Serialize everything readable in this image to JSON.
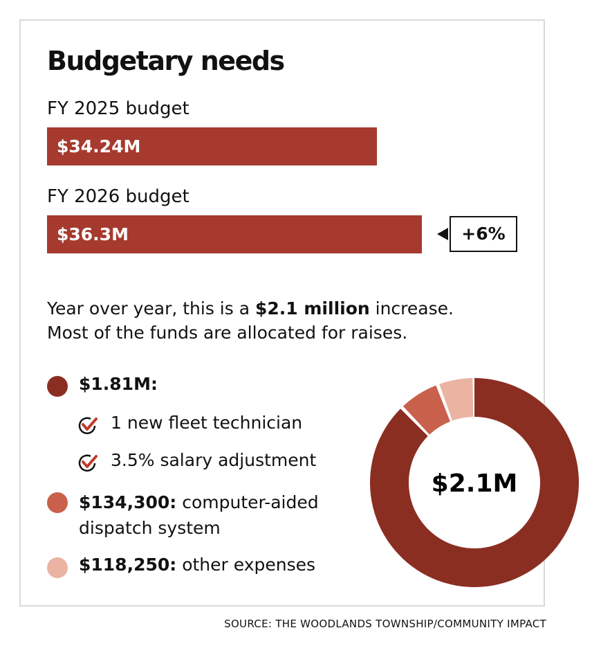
{
  "chart_data": {
    "type": "bar+pie",
    "title": "Budgetary needs",
    "bars": [
      {
        "label": "FY 2025 budget",
        "value": 34.24,
        "display": "$34.24M"
      },
      {
        "label": "FY 2026 budget",
        "value": 36.3,
        "display": "$36.3M"
      }
    ],
    "change_badge": "+6%",
    "summary_pre": "Year over year, this is a ",
    "summary_bold": "$2.1 million",
    "summary_post": " increase.",
    "summary_line2": "Most of the funds are allocated for raises.",
    "donut": {
      "center_label": "$2.1M",
      "slices": [
        {
          "name": "$1.81M:",
          "value": 1810000,
          "color": "#8b2e22",
          "details": [
            "1 new fleet technician",
            "3.5% salary adjustment"
          ]
        },
        {
          "name": "$134,300:",
          "desc": " computer-aided",
          "desc2": "dispatch system",
          "value": 134300,
          "color": "#c9604b"
        },
        {
          "name": "$118,250:",
          "desc": " other expenses",
          "value": 118250,
          "color": "#eab3a2"
        }
      ]
    },
    "source": "SOURCE: THE WOODLANDS TOWNSHIP/COMMUNITY IMPACT"
  }
}
